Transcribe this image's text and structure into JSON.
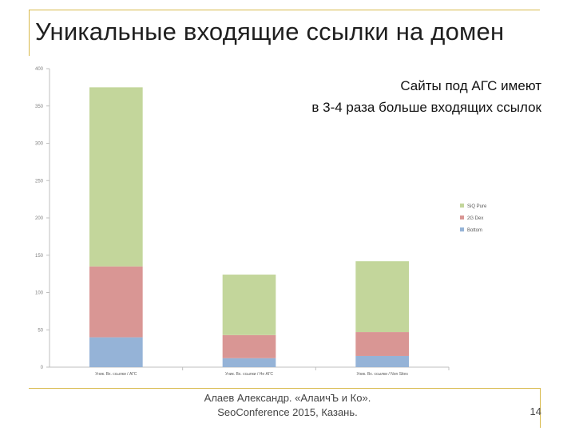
{
  "slide": {
    "title": "Уникальные входящие ссылки на домен",
    "note_line1": "Сайты под АГС имеют",
    "note_line2": "в 3-4 раза больше входящих ссылок",
    "footer_line1": "Алаев Александр. «АлаичЪ и Ко».",
    "footer_line2": "SeoConference 2015, Казань.",
    "page_number": "14"
  },
  "chart_data": {
    "type": "bar",
    "stacked": true,
    "categories": [
      "Уник. Вх. ссылки / АГС",
      "Уник. Вх. ссылки / Не АГС",
      "Уник. Вх. ссылки / Non Sites"
    ],
    "series": [
      {
        "name": "Bottom",
        "values": [
          40,
          12,
          15
        ],
        "color": "#95b3d7"
      },
      {
        "name": "2G Dex",
        "values": [
          95,
          31,
          32
        ],
        "color": "#d99694"
      },
      {
        "name": "SiQ Pure",
        "values": [
          240,
          81,
          95
        ],
        "color": "#c3d69b"
      }
    ],
    "yticks": [
      0,
      50,
      100,
      150,
      200,
      250,
      300,
      350,
      400
    ],
    "ylim": [
      0,
      400
    ],
    "grid": false,
    "legend_position": "right",
    "colors": {
      "axis": "#bfbfbf",
      "tick_text": "#7f7f7f",
      "frame": "#d8b94a"
    }
  }
}
